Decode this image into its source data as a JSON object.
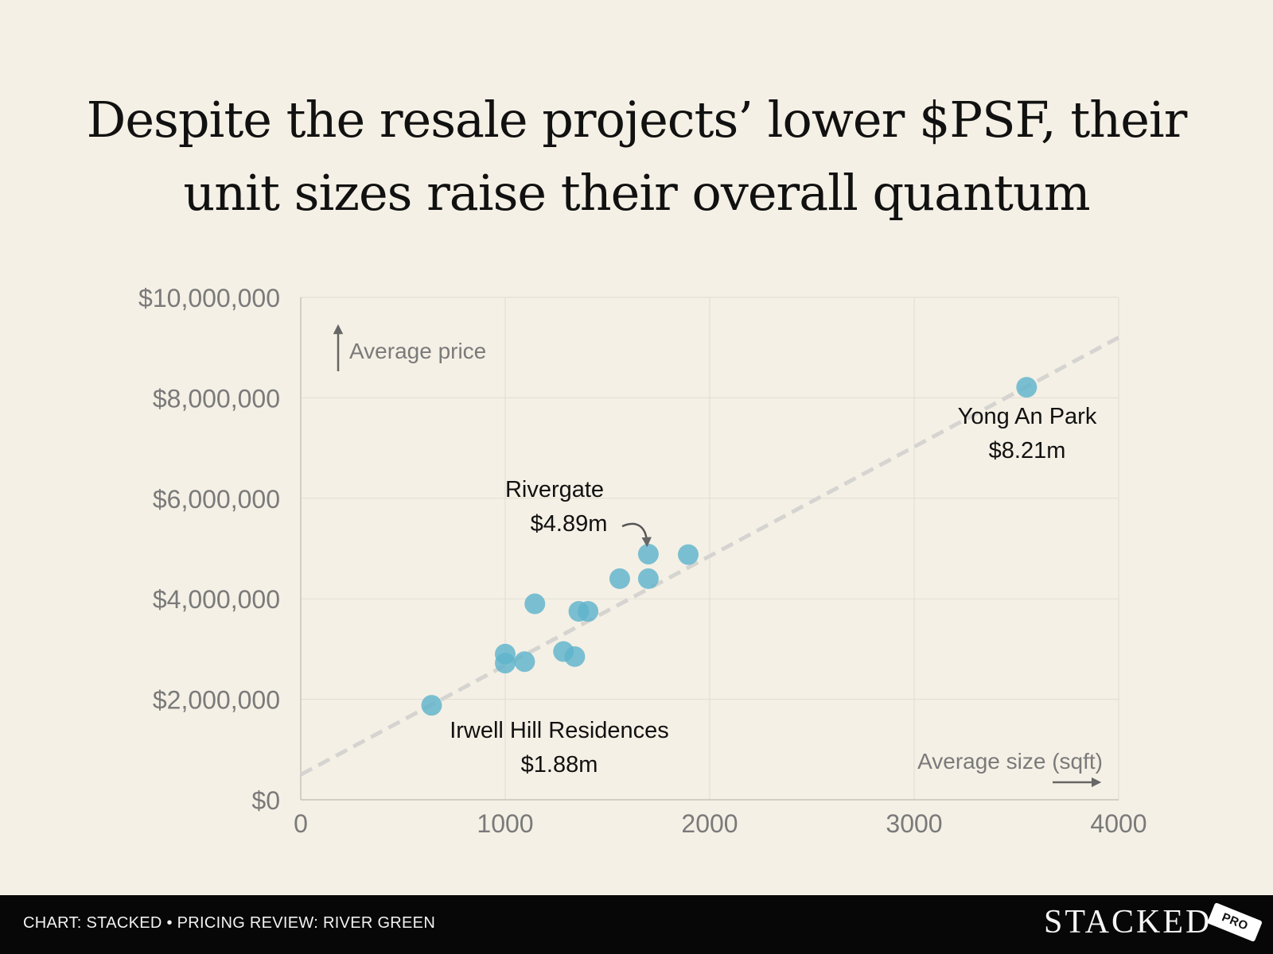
{
  "title": {
    "line1": "Despite the resale projects’ lower $PSF, their",
    "line2": "unit sizes raise their overall quantum"
  },
  "colors": {
    "background": "#f5f0e5",
    "point": "#5fb3cc",
    "trendline": "#d5d4d1",
    "footer": "#070707"
  },
  "chart_data": {
    "type": "scatter",
    "xlim": [
      0,
      4000
    ],
    "ylim": [
      0,
      10000000
    ],
    "x_ticks": [
      0,
      1000,
      2000,
      3000,
      4000
    ],
    "x_tick_labels": [
      "0",
      "1000",
      "2000",
      "3000",
      "4000"
    ],
    "y_ticks": [
      0,
      2000000,
      4000000,
      6000000,
      8000000,
      10000000
    ],
    "y_tick_labels": [
      "$0",
      "$2,000,000",
      "$4,000,000",
      "$6,000,000",
      "$8,000,000",
      "$10,000,000"
    ],
    "xlabel": "Average size (sqft)",
    "ylabel": "Average price",
    "grid": true,
    "points": [
      {
        "x": 640,
        "y": 1880000
      },
      {
        "x": 1000,
        "y": 2900000
      },
      {
        "x": 1000,
        "y": 2720000
      },
      {
        "x": 1095,
        "y": 2750000
      },
      {
        "x": 1145,
        "y": 3900000
      },
      {
        "x": 1285,
        "y": 2950000
      },
      {
        "x": 1340,
        "y": 2850000
      },
      {
        "x": 1360,
        "y": 3750000
      },
      {
        "x": 1405,
        "y": 3750000
      },
      {
        "x": 1560,
        "y": 4400000
      },
      {
        "x": 1700,
        "y": 4890000
      },
      {
        "x": 1700,
        "y": 4400000
      },
      {
        "x": 1895,
        "y": 4880000
      },
      {
        "x": 3550,
        "y": 8210000
      }
    ],
    "trendline": {
      "x": [
        0,
        4000
      ],
      "y": [
        500000,
        9200000
      ]
    },
    "annotations": [
      {
        "name": "Irwell Hill Residences",
        "value": "$1.88m"
      },
      {
        "name": "Rivergate",
        "value": "$4.89m"
      },
      {
        "name": "Yong An Park",
        "value": "$8.21m"
      }
    ]
  },
  "footer": {
    "source": "CHART: STACKED • PRICING REVIEW: RIVER GREEN",
    "brand": "STACKED",
    "badge": "PRO"
  }
}
